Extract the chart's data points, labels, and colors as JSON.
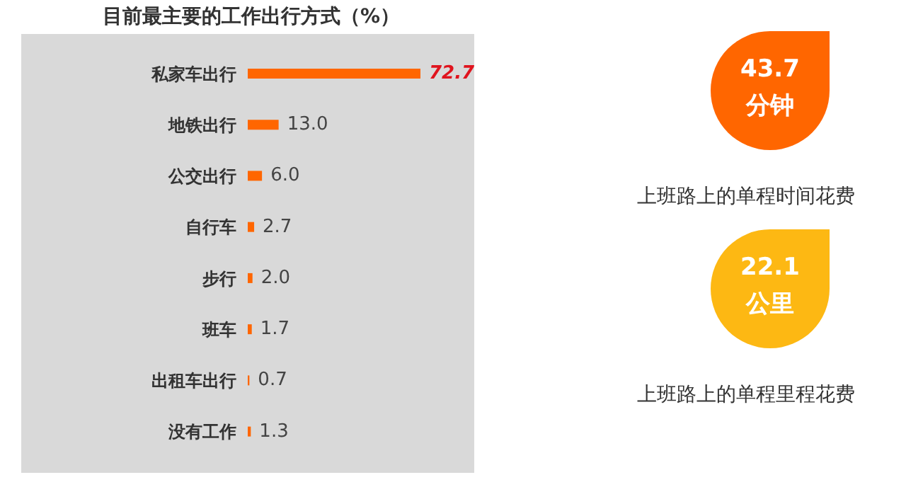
{
  "chart_data": [
    {
      "type": "bar",
      "orientation": "horizontal",
      "title": "目前最主要的工作出行方式（%）",
      "categories": [
        "私家车出行",
        "地铁出行",
        "公交出行",
        "自行车",
        "步行",
        "班车",
        "出租车出行",
        "没有工作"
      ],
      "values": [
        72.7,
        13.0,
        6.0,
        2.7,
        2.0,
        1.7,
        0.7,
        1.3
      ],
      "value_labels": [
        "72.7",
        "13.0",
        "6.0",
        "2.7",
        "2.0",
        "1.7",
        "0.7",
        "1.3"
      ],
      "color": "#ff6600"
    },
    {
      "type": "other",
      "colors": [
        "#ff6600",
        "#fdb813"
      ],
      "annotations": [
        "43.7",
        "分钟",
        "上班路上的单程时间花费",
        "22.1",
        "公里",
        "上班路上的单程里程花费"
      ]
    }
  ]
}
